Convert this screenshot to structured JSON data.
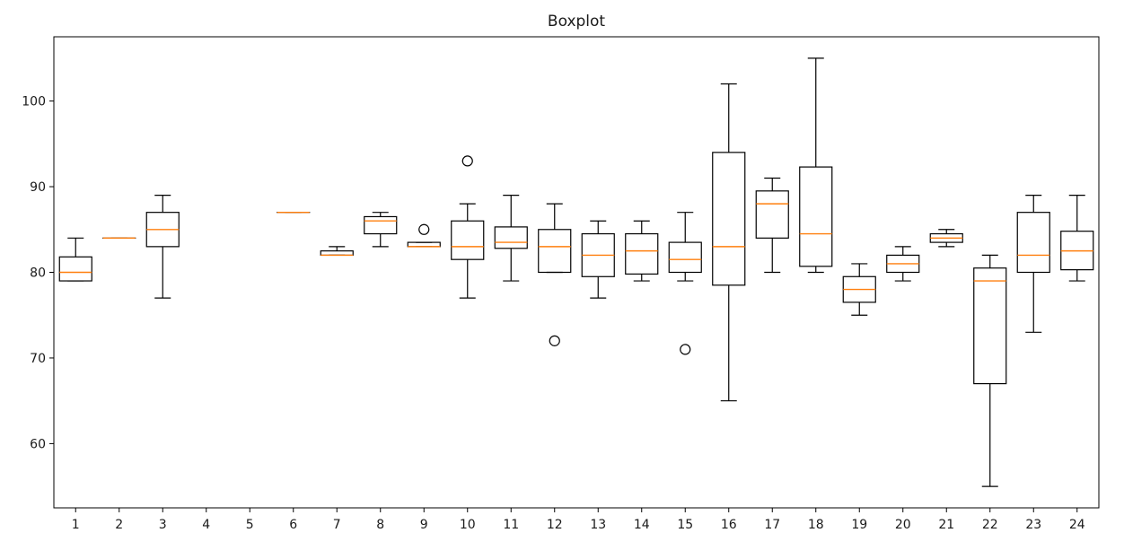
{
  "chart_data": {
    "type": "boxplot",
    "title": "Boxplot",
    "xlabel": "",
    "ylabel": "",
    "ylim": [
      52.5,
      107.5
    ],
    "yticks": [
      60,
      70,
      80,
      90,
      100
    ],
    "grid": false,
    "categories": [
      "1",
      "2",
      "3",
      "4",
      "5",
      "6",
      "7",
      "8",
      "9",
      "10",
      "11",
      "12",
      "13",
      "14",
      "15",
      "16",
      "17",
      "18",
      "19",
      "20",
      "21",
      "22",
      "23",
      "24"
    ],
    "boxes": [
      {
        "category": "1",
        "whislo": 79,
        "q1": 79,
        "med": 80,
        "q3": 81.8,
        "whishi": 84,
        "fliers": []
      },
      {
        "category": "2",
        "whislo": 84,
        "q1": 84,
        "med": 84,
        "q3": 84,
        "whishi": 84,
        "fliers": []
      },
      {
        "category": "3",
        "whislo": 77,
        "q1": 83,
        "med": 85,
        "q3": 87,
        "whishi": 89,
        "fliers": []
      },
      {
        "category": "4",
        "empty": true
      },
      {
        "category": "5",
        "empty": true
      },
      {
        "category": "6",
        "whislo": 87,
        "q1": 87,
        "med": 87,
        "q3": 87,
        "whishi": 87,
        "fliers": []
      },
      {
        "category": "7",
        "whislo": 82,
        "q1": 82,
        "med": 82,
        "q3": 82.5,
        "whishi": 83,
        "fliers": []
      },
      {
        "category": "8",
        "whislo": 83,
        "q1": 84.5,
        "med": 86,
        "q3": 86.5,
        "whishi": 87,
        "fliers": []
      },
      {
        "category": "9",
        "whislo": 83,
        "q1": 83,
        "med": 83,
        "q3": 83.5,
        "whishi": 83.5,
        "fliers": [
          85
        ]
      },
      {
        "category": "10",
        "whislo": 77,
        "q1": 81.5,
        "med": 83,
        "q3": 86,
        "whishi": 88,
        "fliers": [
          93
        ]
      },
      {
        "category": "11",
        "whislo": 79,
        "q1": 82.8,
        "med": 83.5,
        "q3": 85.3,
        "whishi": 89,
        "fliers": []
      },
      {
        "category": "12",
        "whislo": 80,
        "q1": 80,
        "med": 83,
        "q3": 85,
        "whishi": 88,
        "fliers": [
          72
        ]
      },
      {
        "category": "13",
        "whislo": 77,
        "q1": 79.5,
        "med": 82,
        "q3": 84.5,
        "whishi": 86,
        "fliers": []
      },
      {
        "category": "14",
        "whislo": 79,
        "q1": 79.8,
        "med": 82.5,
        "q3": 84.5,
        "whishi": 86,
        "fliers": []
      },
      {
        "category": "15",
        "whislo": 79,
        "q1": 80,
        "med": 81.5,
        "q3": 83.5,
        "whishi": 87,
        "fliers": [
          71
        ]
      },
      {
        "category": "16",
        "whislo": 65,
        "q1": 78.5,
        "med": 83,
        "q3": 94,
        "whishi": 102,
        "fliers": []
      },
      {
        "category": "17",
        "whislo": 80,
        "q1": 84,
        "med": 88,
        "q3": 89.5,
        "whishi": 91,
        "fliers": []
      },
      {
        "category": "18",
        "whislo": 80,
        "q1": 80.7,
        "med": 84.5,
        "q3": 92.3,
        "whishi": 105,
        "fliers": []
      },
      {
        "category": "19",
        "whislo": 75,
        "q1": 76.5,
        "med": 78,
        "q3": 79.5,
        "whishi": 81,
        "fliers": []
      },
      {
        "category": "20",
        "whislo": 79,
        "q1": 80,
        "med": 81,
        "q3": 82,
        "whishi": 83,
        "fliers": []
      },
      {
        "category": "21",
        "whislo": 83,
        "q1": 83.5,
        "med": 84,
        "q3": 84.5,
        "whishi": 85,
        "fliers": []
      },
      {
        "category": "22",
        "whislo": 55,
        "q1": 67,
        "med": 79,
        "q3": 80.5,
        "whishi": 82,
        "fliers": []
      },
      {
        "category": "23",
        "whislo": 73,
        "q1": 80,
        "med": 82,
        "q3": 87,
        "whishi": 89,
        "fliers": []
      },
      {
        "category": "24",
        "whislo": 79,
        "q1": 80.3,
        "med": 82.5,
        "q3": 84.8,
        "whishi": 89,
        "fliers": []
      }
    ],
    "colors": {
      "box": "#000000",
      "median": "#ff7f0e",
      "flier": "#000000",
      "axes": "#000000",
      "background": "#ffffff"
    }
  }
}
